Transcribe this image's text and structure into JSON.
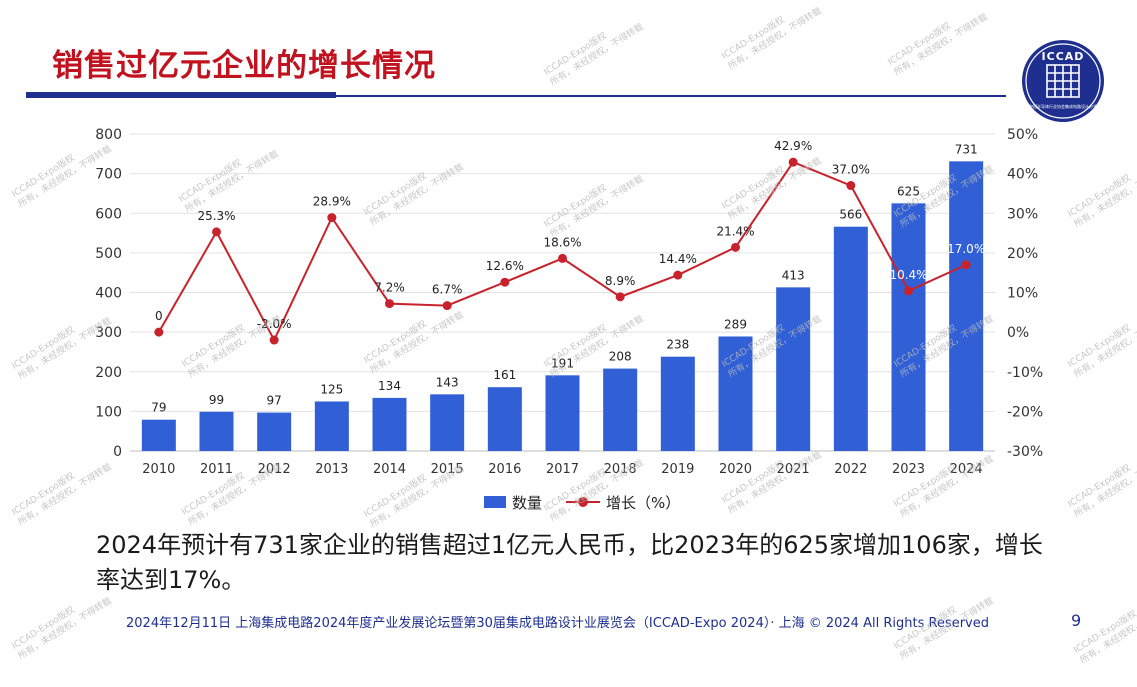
{
  "slide": {
    "title": "销售过亿元企业的增长情况",
    "body_text": "2024年预计有731家企业的销售超过1亿元人民币，比2023年的625家增加106家，增长率达到17%。",
    "footer": "2024年12月11日 上海集成电路2024年度产业发展论坛暨第30届集成电路设计业展览会（ICCAD-Expo 2024）· 上海 © 2024 All Rights Reserved",
    "page_number": "9"
  },
  "logo": {
    "text": "ICCAD",
    "subtext": "中国半导体行业协会集成电路设计分会",
    "color": "#1e2f8f"
  },
  "watermark": {
    "line1": "ICCAD-Expo版权",
    "line2": "所有，未经授权，不得转载"
  },
  "colors": {
    "title": "#c1121f",
    "bar": "#3160d6",
    "line": "#c8232c",
    "rule": "#1e2f8f"
  },
  "legend": {
    "bar_label": "数量",
    "line_label": "增长（%）"
  },
  "chart_data": {
    "type": "bar",
    "categories": [
      "2010",
      "2011",
      "2012",
      "2013",
      "2014",
      "2015",
      "2016",
      "2017",
      "2018",
      "2019",
      "2020",
      "2021",
      "2022",
      "2023",
      "2024"
    ],
    "series": [
      {
        "name": "数量",
        "type": "bar",
        "axis": "left",
        "values": [
          79,
          99,
          97,
          125,
          134,
          143,
          161,
          191,
          208,
          238,
          289,
          413,
          566,
          625,
          731
        ],
        "labels": [
          "79",
          "99",
          "97",
          "125",
          "134",
          "143",
          "161",
          "191",
          "208",
          "238",
          "289",
          "413",
          "566",
          "625",
          "731"
        ]
      },
      {
        "name": "增长（%）",
        "type": "line",
        "axis": "right",
        "values": [
          0,
          25.3,
          -2.0,
          28.9,
          7.2,
          6.7,
          12.6,
          18.6,
          8.9,
          14.4,
          21.4,
          42.9,
          37.0,
          10.4,
          17.0
        ],
        "labels": [
          "0",
          "25.3%",
          "-2.0%",
          "28.9%",
          "7.2%",
          "6.7%",
          "12.6%",
          "18.6%",
          "8.9%",
          "14.4%",
          "21.4%",
          "42.9%",
          "37.0%",
          "10.4%",
          "17.0%"
        ]
      }
    ],
    "y_left": {
      "ylim": [
        0,
        800
      ],
      "ticks": [
        "0",
        "100",
        "200",
        "300",
        "400",
        "500",
        "600",
        "700",
        "800"
      ]
    },
    "y_right": {
      "ylim": [
        -30,
        50
      ],
      "ticks": [
        "-30%",
        "-20%",
        "-10%",
        "0%",
        "10%",
        "20%",
        "30%",
        "40%",
        "50%"
      ]
    },
    "grid": true,
    "legend_position": "bottom"
  }
}
